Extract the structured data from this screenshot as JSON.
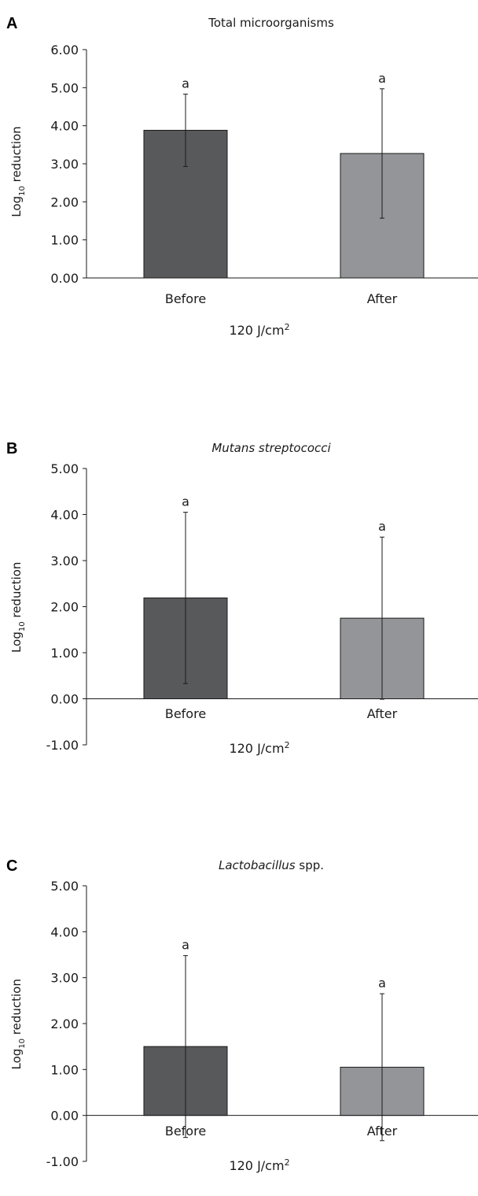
{
  "chart_data": [
    {
      "type": "bar",
      "panel_label": "A",
      "title": "Total microorganisms",
      "title_italic": false,
      "ylabel_main": "Log",
      "ylabel_sub": "10",
      "ylabel_rest": " reduction",
      "xlabel_main": "120 J/cm",
      "xlabel_sup": "2",
      "categories": [
        "Before",
        "After"
      ],
      "values": [
        3.88,
        3.27
      ],
      "errors": [
        0.95,
        1.7
      ],
      "annotations": [
        "a",
        "a"
      ],
      "ylim": [
        0,
        6
      ],
      "yticks": [
        "0.00",
        "1.00",
        "2.00",
        "3.00",
        "4.00",
        "5.00",
        "6.00"
      ],
      "colors": [
        "#58595b",
        "#939598"
      ]
    },
    {
      "type": "bar",
      "panel_label": "B",
      "title": "Mutans streptococci",
      "title_italic": true,
      "ylabel_main": "Log",
      "ylabel_sub": "10",
      "ylabel_rest": " reduction",
      "xlabel_main": "120 J/cm",
      "xlabel_sup": "2",
      "categories": [
        "Before",
        "After"
      ],
      "values": [
        2.19,
        1.75
      ],
      "errors": [
        1.86,
        1.76
      ],
      "annotations": [
        "a",
        "a"
      ],
      "ylim": [
        -1,
        5
      ],
      "yticks": [
        "-1.00",
        "0.00",
        "1.00",
        "2.00",
        "3.00",
        "4.00",
        "5.00"
      ],
      "colors": [
        "#58595b",
        "#939598"
      ]
    },
    {
      "type": "bar",
      "panel_label": "C",
      "title": "Lactobacillus",
      "title_suffix": " spp.",
      "title_italic": true,
      "ylabel_main": "Log",
      "ylabel_sub": "10",
      "ylabel_rest": " reduction",
      "xlabel_main": "120 J/cm",
      "xlabel_sup": "2",
      "categories": [
        "Before",
        "After"
      ],
      "values": [
        1.5,
        1.05
      ],
      "errors": [
        1.98,
        1.6
      ],
      "annotations": [
        "a",
        "a"
      ],
      "ylim": [
        -1,
        5
      ],
      "yticks": [
        "-1.00",
        "0.00",
        "1.00",
        "2.00",
        "3.00",
        "4.00",
        "5.00"
      ],
      "colors": [
        "#58595b",
        "#939598"
      ]
    }
  ]
}
